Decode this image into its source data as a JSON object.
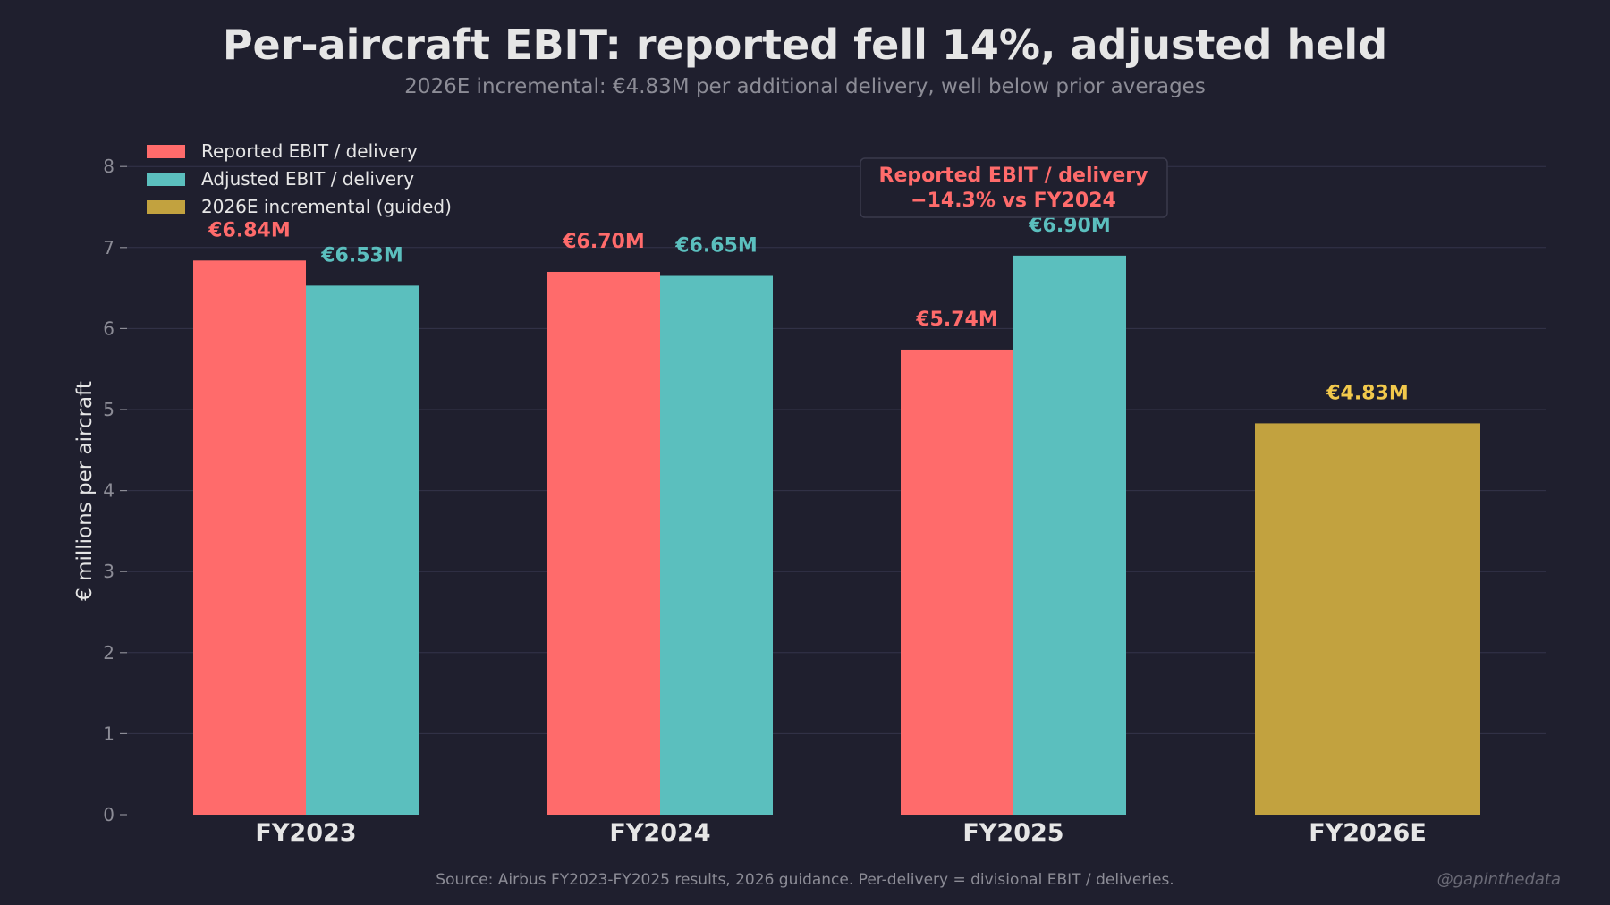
{
  "chart_data": {
    "type": "bar",
    "title": "Per-aircraft EBIT: reported fell 14%, adjusted held",
    "subtitle": "2026E incremental: €4.83M per additional delivery, well below prior averages",
    "xlabel": "",
    "ylabel": "€ millions per aircraft",
    "ylim": [
      0,
      8
    ],
    "yticks": [
      0,
      1,
      2,
      3,
      4,
      5,
      6,
      7,
      8
    ],
    "grid": true,
    "legend_position": "top-left",
    "categories": [
      "FY2023",
      "FY2024",
      "FY2025",
      "FY2026E"
    ],
    "series": [
      {
        "name": "Reported EBIT / delivery",
        "color": "#ff6b6b",
        "label_color": "#ff6b6b",
        "values": [
          6.84,
          6.7,
          5.74,
          null
        ],
        "labels": [
          "€6.84M",
          "€6.70M",
          "€5.74M",
          null
        ]
      },
      {
        "name": "Adjusted EBIT / delivery",
        "color": "#5bbfbe",
        "label_color": "#5bbfbe",
        "values": [
          6.53,
          6.65,
          6.9,
          null
        ],
        "labels": [
          "€6.53M",
          "€6.65M",
          "€6.90M",
          null
        ]
      },
      {
        "name": "2026E incremental (guided)",
        "color": "#c2a23f",
        "label_color": "#f2c94c",
        "values": [
          null,
          null,
          null,
          4.83
        ],
        "labels": [
          null,
          null,
          null,
          "€4.83M"
        ]
      }
    ],
    "annotation": {
      "line1": "Reported EBIT / delivery",
      "line2": "−14.3% vs FY2024",
      "color": "#ff6b6b"
    },
    "source": "Source: Airbus FY2023-FY2025 results, 2026 guidance. Per-delivery = divisional EBIT / deliveries.",
    "watermark": "@gapinthedata"
  },
  "colors": {
    "background": "#1f1f2e",
    "grid": "#34344a",
    "text": "#e6e6e6",
    "muted": "#8c8c96"
  }
}
